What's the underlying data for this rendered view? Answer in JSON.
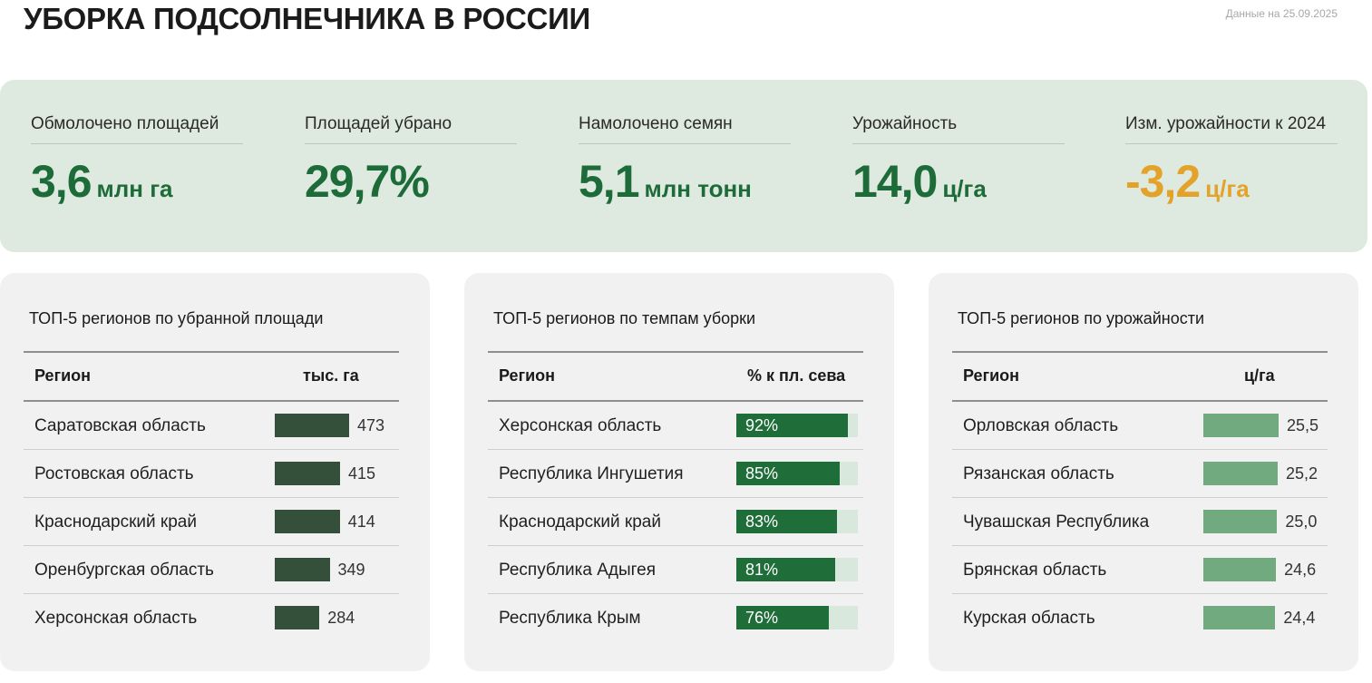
{
  "page": {
    "title": "УБОРКА ПОДСОЛНЕЧНИКА В РОССИИ",
    "date_note": "Данные на 25.09.2025"
  },
  "kpis": [
    {
      "label": "Обмолочено площадей",
      "value": "3,6",
      "unit": "млн га"
    },
    {
      "label": "Площадей убрано",
      "value": "29,7%",
      "unit": ""
    },
    {
      "label": "Намолочено семян",
      "value": "5,1",
      "unit": "млн тонн"
    },
    {
      "label": "Урожайность",
      "value": "14,0",
      "unit": "ц/га"
    },
    {
      "label": "Изм. урожайности к 2024",
      "value": "-3,2",
      "unit": "ц/га"
    }
  ],
  "colors": {
    "accent_green": "#1e6b3a",
    "warn_orange": "#e3a32b",
    "bar_area": "#34503a",
    "bar_pace": "#1f6e3a",
    "bar_pace_track": "#d8e8dc",
    "bar_yield": "#72aa80"
  },
  "chart_data": [
    {
      "type": "bar",
      "title": "ТОП-5 регионов по убранной площади",
      "col_region": "Регион",
      "col_value": "тыс. га",
      "categories": [
        "Саратовская область",
        "Ростовская область",
        "Краснодарский край",
        "Оренбургская область",
        "Херсонская область"
      ],
      "values": [
        473,
        415,
        414,
        349,
        284
      ],
      "labels": [
        "473",
        "415",
        "414",
        "349",
        "284"
      ],
      "xlim": [
        0,
        473
      ]
    },
    {
      "type": "bar",
      "title": "ТОП-5 регионов по темпам уборки",
      "col_region": "Регион",
      "col_value": "% к пл. сева",
      "categories": [
        "Херсонская область",
        "Республика Ингушетия",
        "Краснодарский край",
        "Республика Адыгея",
        "Республика Крым"
      ],
      "values": [
        92,
        85,
        83,
        81,
        76
      ],
      "labels": [
        "92%",
        "85%",
        "83%",
        "81%",
        "76%"
      ],
      "xlim": [
        0,
        100
      ]
    },
    {
      "type": "bar",
      "title": "ТОП-5 регионов по урожайности",
      "col_region": "Регион",
      "col_value": "ц/га",
      "categories": [
        "Орловская область",
        "Рязанская область",
        "Чувашская Республика",
        "Брянская область",
        "Курская область"
      ],
      "values": [
        25.5,
        25.2,
        25.0,
        24.6,
        24.4
      ],
      "labels": [
        "25,5",
        "25,2",
        "25,0",
        "24,6",
        "24,4"
      ],
      "xlim": [
        0,
        25.5
      ]
    }
  ]
}
